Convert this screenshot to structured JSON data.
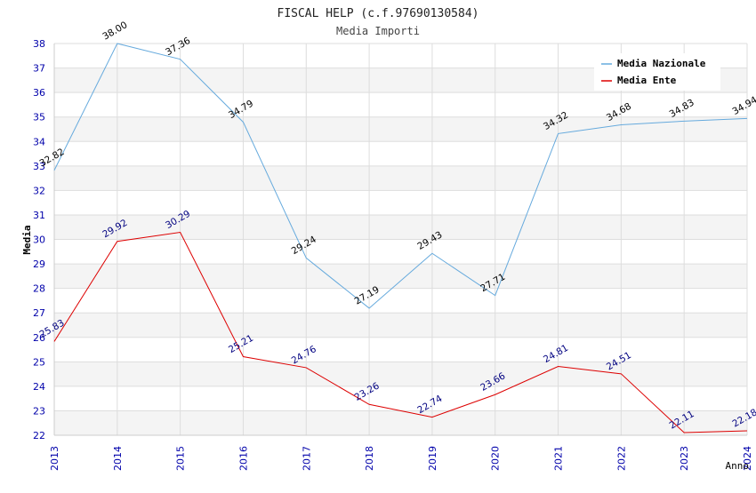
{
  "chart_data": {
    "type": "line",
    "title": "FISCAL HELP (c.f.97690130584)",
    "subtitle": "Media Importi",
    "xlabel": "Anno",
    "ylabel": "Media",
    "x": [
      "2013",
      "2014",
      "2015",
      "2016",
      "2017",
      "2018",
      "2019",
      "2020",
      "2021",
      "2022",
      "2023",
      "2024"
    ],
    "ylim": [
      22,
      38
    ],
    "yticks": [
      22,
      23,
      24,
      25,
      26,
      27,
      28,
      29,
      30,
      31,
      32,
      33,
      34,
      35,
      36,
      37,
      38
    ],
    "grid": true,
    "legend_position": "top-right",
    "series": [
      {
        "name": "Media Nazionale",
        "color": "#66aadd",
        "label_color": "#000000",
        "values": [
          32.82,
          38.0,
          37.36,
          34.79,
          29.24,
          27.19,
          29.43,
          27.71,
          34.32,
          34.68,
          34.83,
          34.94
        ],
        "labels": [
          "32.82",
          "38.00",
          "37.36",
          "34.79",
          "29.24",
          "27.19",
          "29.43",
          "27.71",
          "34.32",
          "34.68",
          "34.83",
          "34.94"
        ]
      },
      {
        "name": "Media Ente",
        "color": "#dd0000",
        "label_color": "#000080",
        "values": [
          25.83,
          29.92,
          30.29,
          25.21,
          24.76,
          23.26,
          22.74,
          23.66,
          24.81,
          24.51,
          22.11,
          22.18
        ],
        "labels": [
          "25.83",
          "29.92",
          "30.29",
          "25.21",
          "24.76",
          "23.26",
          "22.74",
          "23.66",
          "24.81",
          "24.51",
          "22.11",
          "22.18"
        ]
      }
    ]
  }
}
